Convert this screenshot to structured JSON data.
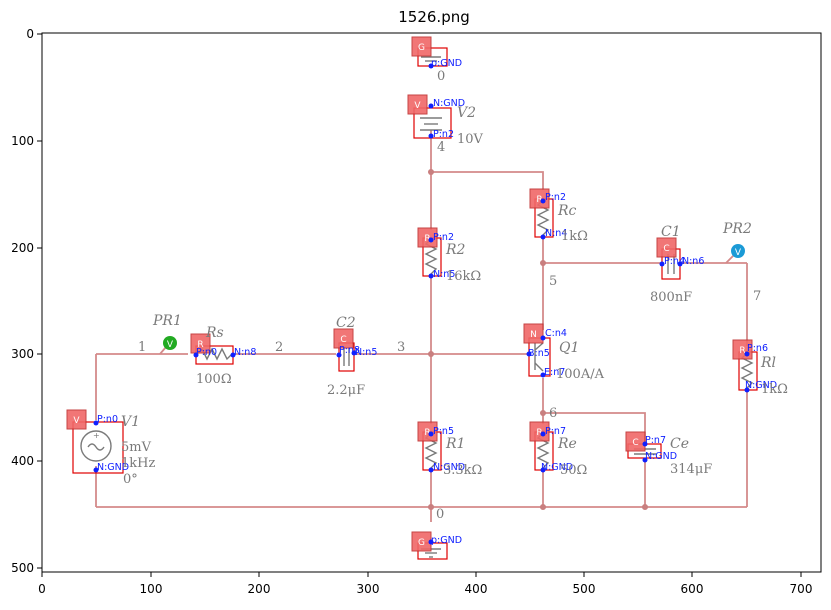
{
  "title": "1526.png",
  "x_ticks": [
    "0",
    "100",
    "200",
    "300",
    "400",
    "500",
    "600",
    "700"
  ],
  "y_ticks": [
    "0",
    "100",
    "200",
    "300",
    "400",
    "500"
  ],
  "components": [
    {
      "id": "G1",
      "type": "G",
      "pins": [
        "p:GND"
      ],
      "net": "0"
    },
    {
      "id": "V2",
      "type": "V",
      "name": "V2",
      "value": "10V",
      "pins": [
        "N:GND",
        "P:n2"
      ],
      "net": "4"
    },
    {
      "id": "Rc",
      "type": "R",
      "name": "Rc",
      "value": "1kΩ",
      "pins": [
        "P:n2",
        "N:n4"
      ]
    },
    {
      "id": "R2",
      "type": "R",
      "name": "R2",
      "value": "16kΩ",
      "pins": [
        "P:n2",
        "N:n5"
      ]
    },
    {
      "id": "C1",
      "type": "C",
      "name": "C1",
      "value": "800nF",
      "pins": [
        "P:n4",
        "N:n6"
      ]
    },
    {
      "id": "PR2",
      "type": "probe",
      "name": "PR2",
      "glyph": "V"
    },
    {
      "id": "PR1",
      "type": "probe",
      "name": "PR1",
      "glyph": "V"
    },
    {
      "id": "Rs",
      "type": "R",
      "name": "Rs",
      "value": "100Ω",
      "pins": [
        "P:n0",
        "N:n8"
      ]
    },
    {
      "id": "C2",
      "type": "C",
      "name": "C2",
      "value": "2.2μF",
      "pins": [
        "P:n8",
        "N:n5"
      ]
    },
    {
      "id": "Q1",
      "type": "N",
      "name": "Q1",
      "value": "100A/A",
      "pins": [
        "C:n4",
        "B:n5",
        "E:n7"
      ]
    },
    {
      "id": "Rl",
      "type": "R",
      "name": "Rl",
      "value": "1kΩ",
      "pins": [
        "P:n6",
        "N:GND"
      ]
    },
    {
      "id": "V1",
      "type": "V",
      "name": "V1",
      "value": [
        "5mV",
        "1kHz",
        "0°"
      ],
      "pins": [
        "P:n0",
        "N:GND"
      ]
    },
    {
      "id": "R1",
      "type": "R",
      "name": "R1",
      "value": "3.3kΩ",
      "pins": [
        "P:n5",
        "N:GND"
      ]
    },
    {
      "id": "Re",
      "type": "R",
      "name": "Re",
      "value": "50Ω",
      "pins": [
        "P:n7",
        "N:GND"
      ]
    },
    {
      "id": "Ce",
      "type": "C",
      "name": "Ce",
      "value": "314μF",
      "pins": [
        "P:n7",
        "N:GND"
      ]
    },
    {
      "id": "G2",
      "type": "G",
      "pins": [
        "p:GND"
      ],
      "net": "0"
    }
  ],
  "nets": [
    "1",
    "2",
    "3",
    "5",
    "6",
    "7"
  ],
  "badges": {
    "G": "G",
    "V": "V",
    "R": "R",
    "C": "C",
    "N": "N"
  }
}
